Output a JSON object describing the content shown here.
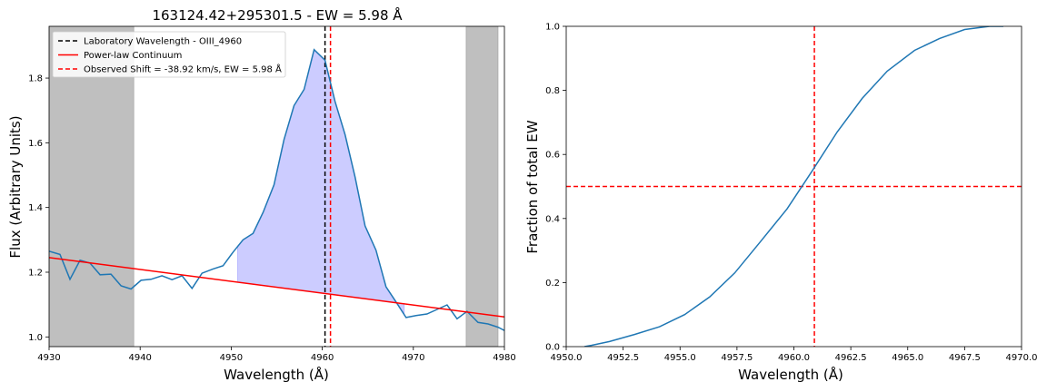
{
  "chart_data": [
    {
      "type": "line",
      "title": "163124.42+295301.5 - EW = 5.98 Å",
      "xlabel": "Wavelength (Å)",
      "ylabel": "Flux (Arbitrary Units)",
      "xlim": [
        4930,
        4980
      ],
      "ylim": [
        0.97,
        1.96
      ],
      "xticks": [
        4930,
        4940,
        4950,
        4960,
        4970,
        4980
      ],
      "xtick_labels": [
        "4930",
        "4940",
        "4950",
        "4960",
        "4970",
        "4980"
      ],
      "yticks": [
        1.0,
        1.2,
        1.4,
        1.6,
        1.8
      ],
      "ytick_labels": [
        "1.0",
        "1.2",
        "1.4",
        "1.6",
        "1.8"
      ],
      "grid": false,
      "legend_position": "top-left",
      "shaded_regions": [
        {
          "x0": 4930,
          "x1": 4939.3,
          "color": "#bfbfbf"
        },
        {
          "x0": 4975.8,
          "x1": 4979.3,
          "color": "#bfbfbf"
        }
      ],
      "fill_region": {
        "x0": 4950.7,
        "x1": 4969.0,
        "color": "#ccccff"
      },
      "series": [
        {
          "name": "",
          "color": "#1f77b4",
          "x": [
            4930,
            4931.2,
            4932.3,
            4933.4,
            4934.5,
            4935.6,
            4936.8,
            4937.9,
            4939.0,
            4940.1,
            4941.2,
            4942.4,
            4943.5,
            4944.6,
            4945.7,
            4946.8,
            4948.0,
            4949.1,
            4950.2,
            4951.3,
            4952.4,
            4953.5,
            4954.7,
            4955.8,
            4956.9,
            4958.0,
            4959.1,
            4960.3,
            4961.4,
            4962.5,
            4963.6,
            4964.7,
            4965.9,
            4967.0,
            4968.1,
            4969.2,
            4970.3,
            4971.5,
            4972.6,
            4973.7,
            4974.8,
            4975.9,
            4977.1,
            4978.2,
            4979.3,
            4980
          ],
          "values": [
            1.265,
            1.255,
            1.178,
            1.237,
            1.228,
            1.192,
            1.194,
            1.158,
            1.148,
            1.175,
            1.178,
            1.189,
            1.177,
            1.189,
            1.15,
            1.197,
            1.21,
            1.22,
            1.262,
            1.3,
            1.32,
            1.385,
            1.47,
            1.61,
            1.715,
            1.765,
            1.888,
            1.855,
            1.728,
            1.625,
            1.494,
            1.343,
            1.268,
            1.155,
            1.108,
            1.06,
            1.066,
            1.071,
            1.085,
            1.099,
            1.056,
            1.079,
            1.045,
            1.04,
            1.03,
            1.02
          ]
        },
        {
          "name": "Power-law Continuum",
          "color": "#ff0000",
          "x": [
            4930,
            4980
          ],
          "values": [
            1.245,
            1.062
          ]
        }
      ],
      "vlines": [
        {
          "name": "Laboratory Wavelength - OIII_4960",
          "x": 4960.3,
          "color": "#000000",
          "style": "dashed"
        },
        {
          "name": "Observed Shift = -38.92 km/s, EW = 5.98 Å",
          "x": 4960.9,
          "color": "#ff0000",
          "style": "dashed"
        }
      ],
      "legend": [
        {
          "label": "Laboratory Wavelength - OIII_4960",
          "color": "#000000",
          "style": "dashed"
        },
        {
          "label": "Power-law Continuum",
          "color": "#ff0000",
          "style": "solid"
        },
        {
          "label": "Observed Shift = -38.92 km/s, EW = 5.98 Å",
          "color": "#ff0000",
          "style": "dashed"
        }
      ]
    },
    {
      "type": "line",
      "title": "",
      "xlabel": "Wavelength (Å)",
      "ylabel": "Fraction of total EW",
      "xlim": [
        4950,
        4970
      ],
      "ylim": [
        0,
        1
      ],
      "xticks": [
        4950,
        4952.5,
        4955,
        4957.5,
        4960,
        4962.5,
        4965,
        4967.5,
        4970
      ],
      "xtick_labels": [
        "4950.0",
        "4952.5",
        "4955.0",
        "4957.5",
        "4960.0",
        "4962.5",
        "4965.0",
        "4967.5",
        "4970.0"
      ],
      "yticks": [
        0,
        0.2,
        0.4,
        0.6,
        0.8,
        1.0
      ],
      "ytick_labels": [
        "0.0",
        "0.2",
        "0.4",
        "0.6",
        "0.8",
        "1.0"
      ],
      "grid": false,
      "series": [
        {
          "name": "",
          "color": "#1f77b4",
          "x": [
            4950.8,
            4951.1,
            4951.9,
            4953.0,
            4954.1,
            4955.2,
            4956.3,
            4957.4,
            4958.5,
            4959.7,
            4960.8,
            4961.9,
            4963.0,
            4964.1,
            4965.3,
            4966.4,
            4967.5,
            4968.6,
            4969.2
          ],
          "values": [
            0.0,
            0.004,
            0.016,
            0.038,
            0.062,
            0.1,
            0.155,
            0.23,
            0.325,
            0.43,
            0.548,
            0.67,
            0.775,
            0.86,
            0.925,
            0.962,
            0.99,
            1.0,
            1.0
          ]
        }
      ],
      "vlines": [
        {
          "x": 4960.9,
          "color": "#ff0000",
          "style": "dashed"
        }
      ],
      "hlines": [
        {
          "y": 0.5,
          "color": "#ff0000",
          "style": "dashed"
        }
      ]
    }
  ]
}
